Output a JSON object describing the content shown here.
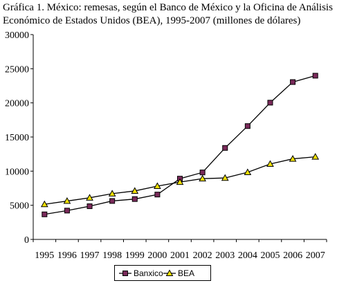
{
  "title_line1": "Gráfica 1. México: remesas, según el Banco de México y la Oficina de Análisis",
  "title_line2": "Económico de Estados Unidos (BEA), 1995-2007 (millones de dólares)",
  "chart_data": {
    "type": "line",
    "categories": [
      "1995",
      "1996",
      "1997",
      "1998",
      "1999",
      "2000",
      "2001",
      "2002",
      "2003",
      "2004",
      "2005",
      "2006",
      "2007"
    ],
    "ylim": [
      0,
      30000
    ],
    "yticks": [
      0,
      5000,
      10000,
      15000,
      20000,
      25000,
      30000
    ],
    "grid": false,
    "legend_position": "bottom",
    "series": [
      {
        "name": "Banxico",
        "marker": "square",
        "color": "#000000",
        "marker_fill": "#7a2a5a",
        "values": [
          3670,
          4220,
          4860,
          5630,
          5910,
          6570,
          8900,
          9810,
          13400,
          16600,
          20030,
          23050,
          23980
        ]
      },
      {
        "name": "BEA",
        "marker": "triangle",
        "color": "#000000",
        "marker_fill": "#f0e000",
        "values": [
          5140,
          5620,
          6100,
          6700,
          7100,
          7800,
          8400,
          8900,
          9000,
          9830,
          11050,
          11800,
          12100
        ]
      }
    ]
  }
}
